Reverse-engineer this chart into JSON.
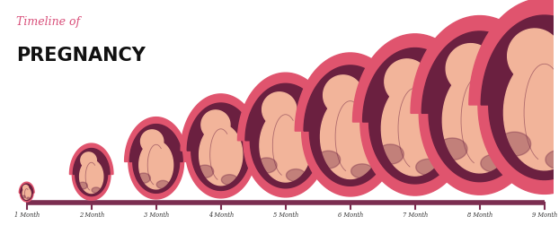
{
  "title_line1": "Timeline of",
  "title_line2": "PREGNANCY",
  "title_color1": "#d94f7a",
  "title_color2": "#111111",
  "background_color": "#ffffff",
  "timeline_color": "#7b2d50",
  "tick_color": "#7b2d50",
  "label_color": "#333333",
  "months": [
    "1 Month",
    "2 Month",
    "3 Month",
    "4 Month",
    "5 Month",
    "6 Month",
    "7 Month",
    "8 Month",
    "9 Month"
  ],
  "outer_color": "#e0546e",
  "inner_color": "#6b2040",
  "skin_color": "#f2b49a",
  "fig_width": 6.22,
  "fig_height": 2.8,
  "n_months": 9
}
